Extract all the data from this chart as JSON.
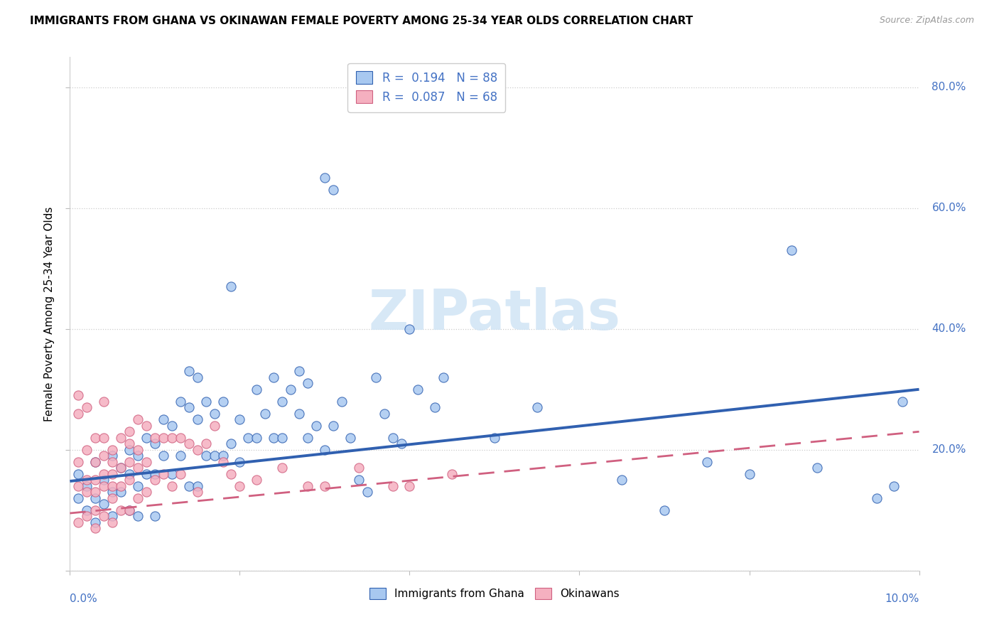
{
  "title": "IMMIGRANTS FROM GHANA VS OKINAWAN FEMALE POVERTY AMONG 25-34 YEAR OLDS CORRELATION CHART",
  "source": "Source: ZipAtlas.com",
  "ylabel": "Female Poverty Among 25-34 Year Olds",
  "legend_label1": "Immigrants from Ghana",
  "legend_label2": "Okinawans",
  "r1": 0.194,
  "n1": 88,
  "r2": 0.087,
  "n2": 68,
  "color_blue": "#A8C8F0",
  "color_pink": "#F5B0C0",
  "line_blue": "#3060B0",
  "line_pink": "#D06080",
  "watermark": "ZIPatlas",
  "xlim": [
    0.0,
    0.1
  ],
  "ylim": [
    0.0,
    0.85
  ],
  "right_ytick_vals": [
    0.2,
    0.4,
    0.6,
    0.8
  ],
  "right_ytick_labels": [
    "20.0%",
    "40.0%",
    "60.0%",
    "80.0%"
  ],
  "blue_intercept": 0.148,
  "blue_slope": 1.52,
  "pink_intercept": 0.095,
  "pink_slope": 1.35,
  "blue_scatter_x": [
    0.001,
    0.001,
    0.002,
    0.002,
    0.003,
    0.003,
    0.003,
    0.004,
    0.004,
    0.005,
    0.005,
    0.005,
    0.006,
    0.006,
    0.007,
    0.007,
    0.007,
    0.008,
    0.008,
    0.008,
    0.009,
    0.009,
    0.01,
    0.01,
    0.01,
    0.011,
    0.011,
    0.012,
    0.012,
    0.013,
    0.013,
    0.014,
    0.014,
    0.014,
    0.015,
    0.015,
    0.015,
    0.016,
    0.016,
    0.017,
    0.017,
    0.018,
    0.018,
    0.019,
    0.019,
    0.02,
    0.02,
    0.021,
    0.022,
    0.022,
    0.023,
    0.024,
    0.024,
    0.025,
    0.025,
    0.026,
    0.027,
    0.027,
    0.028,
    0.028,
    0.029,
    0.03,
    0.03,
    0.031,
    0.031,
    0.032,
    0.033,
    0.034,
    0.035,
    0.036,
    0.037,
    0.038,
    0.039,
    0.04,
    0.041,
    0.043,
    0.044,
    0.05,
    0.055,
    0.065,
    0.07,
    0.075,
    0.08,
    0.085,
    0.088,
    0.095,
    0.097,
    0.098
  ],
  "blue_scatter_y": [
    0.16,
    0.12,
    0.14,
    0.1,
    0.18,
    0.12,
    0.08,
    0.15,
    0.11,
    0.19,
    0.13,
    0.09,
    0.17,
    0.13,
    0.2,
    0.16,
    0.1,
    0.19,
    0.14,
    0.09,
    0.22,
    0.16,
    0.21,
    0.16,
    0.09,
    0.25,
    0.19,
    0.24,
    0.16,
    0.28,
    0.19,
    0.33,
    0.27,
    0.14,
    0.32,
    0.25,
    0.14,
    0.28,
    0.19,
    0.26,
    0.19,
    0.28,
    0.19,
    0.47,
    0.21,
    0.25,
    0.18,
    0.22,
    0.3,
    0.22,
    0.26,
    0.32,
    0.22,
    0.28,
    0.22,
    0.3,
    0.33,
    0.26,
    0.31,
    0.22,
    0.24,
    0.65,
    0.2,
    0.63,
    0.24,
    0.28,
    0.22,
    0.15,
    0.13,
    0.32,
    0.26,
    0.22,
    0.21,
    0.4,
    0.3,
    0.27,
    0.32,
    0.22,
    0.27,
    0.15,
    0.1,
    0.18,
    0.16,
    0.53,
    0.17,
    0.12,
    0.14,
    0.28
  ],
  "pink_scatter_x": [
    0.001,
    0.001,
    0.001,
    0.001,
    0.001,
    0.002,
    0.002,
    0.002,
    0.002,
    0.002,
    0.003,
    0.003,
    0.003,
    0.003,
    0.003,
    0.003,
    0.004,
    0.004,
    0.004,
    0.004,
    0.004,
    0.004,
    0.005,
    0.005,
    0.005,
    0.005,
    0.005,
    0.005,
    0.006,
    0.006,
    0.006,
    0.006,
    0.007,
    0.007,
    0.007,
    0.007,
    0.007,
    0.008,
    0.008,
    0.008,
    0.008,
    0.009,
    0.009,
    0.009,
    0.01,
    0.01,
    0.011,
    0.011,
    0.012,
    0.012,
    0.013,
    0.013,
    0.014,
    0.015,
    0.015,
    0.016,
    0.017,
    0.018,
    0.019,
    0.02,
    0.022,
    0.025,
    0.028,
    0.03,
    0.034,
    0.038,
    0.04,
    0.045
  ],
  "pink_scatter_y": [
    0.29,
    0.26,
    0.18,
    0.14,
    0.08,
    0.27,
    0.2,
    0.15,
    0.13,
    0.09,
    0.22,
    0.18,
    0.15,
    0.13,
    0.1,
    0.07,
    0.28,
    0.22,
    0.19,
    0.16,
    0.14,
    0.09,
    0.2,
    0.18,
    0.16,
    0.14,
    0.12,
    0.08,
    0.22,
    0.17,
    0.14,
    0.1,
    0.23,
    0.21,
    0.18,
    0.15,
    0.1,
    0.25,
    0.2,
    0.17,
    0.12,
    0.24,
    0.18,
    0.13,
    0.22,
    0.15,
    0.22,
    0.16,
    0.22,
    0.14,
    0.22,
    0.16,
    0.21,
    0.2,
    0.13,
    0.21,
    0.24,
    0.18,
    0.16,
    0.14,
    0.15,
    0.17,
    0.14,
    0.14,
    0.17,
    0.14,
    0.14,
    0.16
  ]
}
